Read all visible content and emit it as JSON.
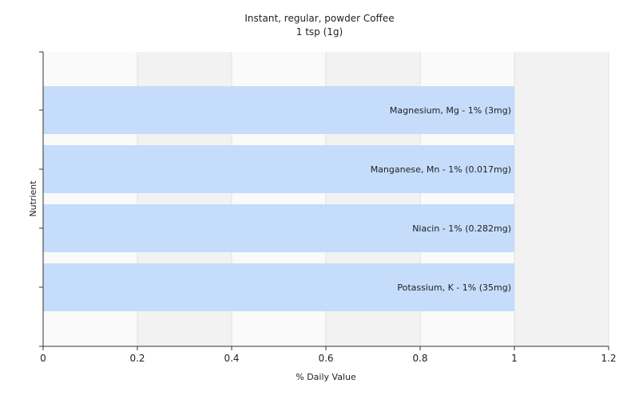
{
  "chart_data": {
    "type": "bar",
    "orientation": "horizontal",
    "title": "Instant, regular, powder Coffee",
    "subtitle": "1 tsp (1g)",
    "xlabel": "% Daily Value",
    "ylabel": "Nutrient",
    "xlim": [
      0,
      1.2
    ],
    "xticks": [
      "0",
      "0.2",
      "0.4",
      "0.6",
      "0.8",
      "1",
      "1.2"
    ],
    "grid": true,
    "legend": "none",
    "bar_color": "#c5dcfb",
    "categories": [
      "Magnesium, Mg",
      "Manganese, Mn",
      "Niacin",
      "Potassium, K"
    ],
    "values": [
      1,
      1,
      1,
      1
    ],
    "labels": [
      "Magnesium, Mg - 1% (3mg)",
      "Manganese, Mn - 1% (0.017mg)",
      "Niacin - 1% (0.282mg)",
      "Potassium, K - 1% (35mg)"
    ]
  }
}
